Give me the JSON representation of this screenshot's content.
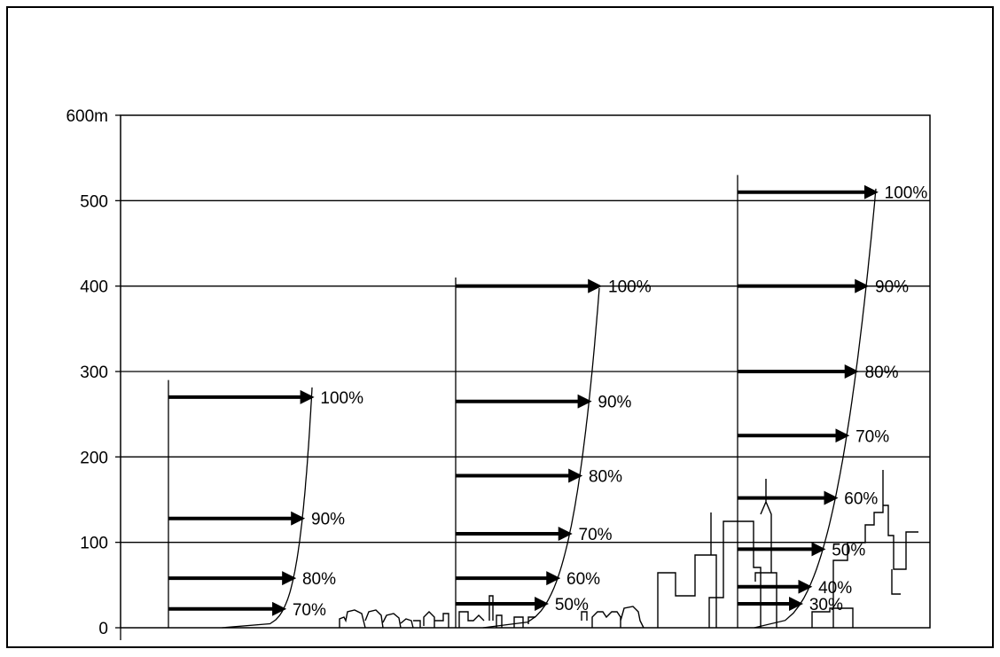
{
  "chart_data": {
    "type": "wind-profile-diagram",
    "title": "",
    "y_unit": "m",
    "y_ticks": [
      {
        "value": 0,
        "label": "0"
      },
      {
        "value": 100,
        "label": "100"
      },
      {
        "value": 200,
        "label": "200"
      },
      {
        "value": 300,
        "label": "300"
      },
      {
        "value": 400,
        "label": "400"
      },
      {
        "value": 500,
        "label": "500"
      },
      {
        "value": 600,
        "label": "600m"
      }
    ],
    "ylim": [
      0,
      600
    ],
    "grid": "horizontal",
    "profiles": [
      {
        "terrain": "open",
        "gradient_height": 290,
        "levels": [
          {
            "height": 270,
            "speed_pct": 100,
            "label": "100%"
          },
          {
            "height": 128,
            "speed_pct": 90,
            "label": "90%"
          },
          {
            "height": 58,
            "speed_pct": 80,
            "label": "80%"
          },
          {
            "height": 22,
            "speed_pct": 70,
            "label": "70%"
          }
        ]
      },
      {
        "terrain": "suburban",
        "gradient_height": 410,
        "levels": [
          {
            "height": 400,
            "speed_pct": 100,
            "label": "100%"
          },
          {
            "height": 265,
            "speed_pct": 90,
            "label": "90%"
          },
          {
            "height": 178,
            "speed_pct": 80,
            "label": "80%"
          },
          {
            "height": 110,
            "speed_pct": 70,
            "label": "70%"
          },
          {
            "height": 58,
            "speed_pct": 60,
            "label": "60%"
          },
          {
            "height": 28,
            "speed_pct": 50,
            "label": "50%"
          }
        ]
      },
      {
        "terrain": "urban",
        "gradient_height": 530,
        "levels": [
          {
            "height": 510,
            "speed_pct": 100,
            "label": "100%"
          },
          {
            "height": 400,
            "speed_pct": 90,
            "label": "90%"
          },
          {
            "height": 300,
            "speed_pct": 80,
            "label": "80%"
          },
          {
            "height": 225,
            "speed_pct": 70,
            "label": "70%"
          },
          {
            "height": 152,
            "speed_pct": 60,
            "label": "60%"
          },
          {
            "height": 92,
            "speed_pct": 50,
            "label": "50%"
          },
          {
            "height": 48,
            "speed_pct": 40,
            "label": "40%"
          },
          {
            "height": 28,
            "speed_pct": 30,
            "label": "30%"
          }
        ]
      }
    ]
  }
}
